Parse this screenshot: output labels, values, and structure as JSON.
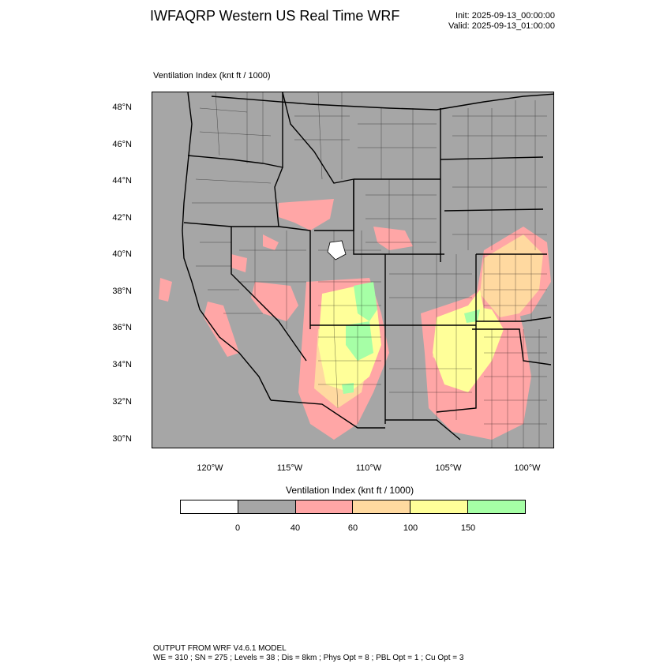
{
  "header": {
    "title": "IWFAQRP Western US Real Time WRF",
    "init": "Init: 2025-09-13_00:00:00",
    "valid": "Valid: 2025-09-13_01:00:00"
  },
  "field_title": "Ventilation Index   (knt ft / 1000)",
  "map": {
    "background_color": "#a6a6a6",
    "boundary_color": "#000000",
    "lat_labels": [
      "48°N",
      "46°N",
      "44°N",
      "42°N",
      "40°N",
      "38°N",
      "36°N",
      "34°N",
      "32°N",
      "30°N"
    ],
    "lon_labels": [
      "120°W",
      "115°W",
      "110°W",
      "105°W",
      "100°W"
    ]
  },
  "colorbar": {
    "title": "Ventilation Index  (knt ft / 1000)",
    "colors": [
      "#ffffff",
      "#a6a6a6",
      "#ffa6a6",
      "#ffd9a0",
      "#ffff99",
      "#a6ffa6"
    ],
    "ticks": [
      "0",
      "40",
      "60",
      "100",
      "150"
    ]
  },
  "footer": {
    "line1": "OUTPUT FROM WRF V4.6.1 MODEL",
    "line2": "WE = 310 ; SN = 275 ; Levels = 38 ; Dis = 8km ; Phys Opt = 8 ; PBL Opt = 1 ; Cu Opt = 3"
  }
}
